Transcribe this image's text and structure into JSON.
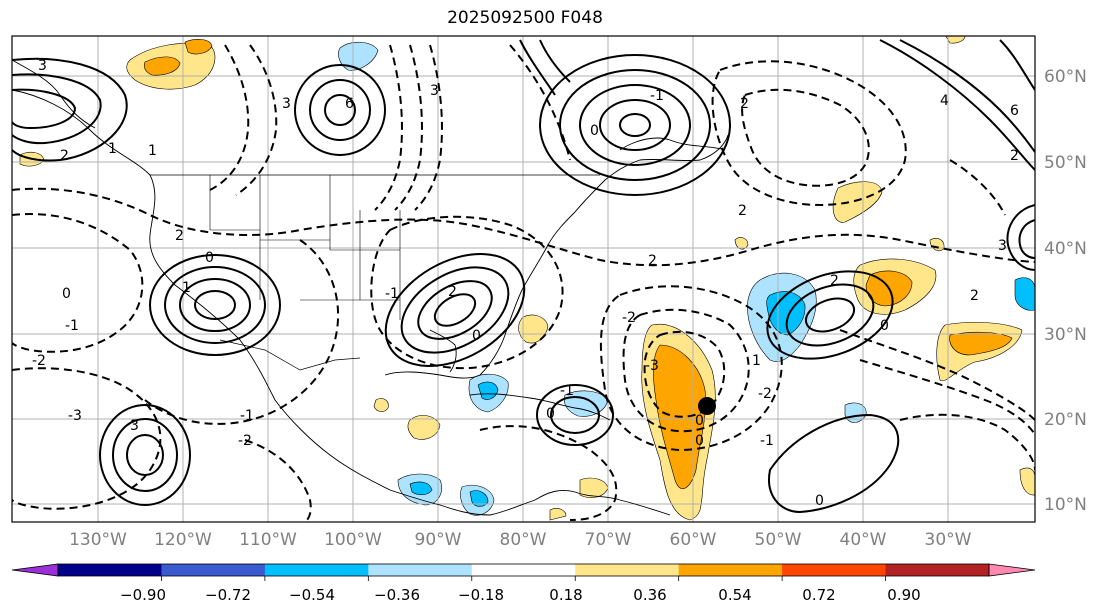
{
  "title": "2025092500 F048",
  "lat_labels": [
    "60°N",
    "50°N",
    "40°N",
    "30°N",
    "20°N",
    "10°N"
  ],
  "lon_labels": [
    "130°W",
    "120°W",
    "110°W",
    "100°W",
    "90°W",
    "80°W",
    "70°W",
    "60°W",
    "50°W",
    "40°W",
    "30°W"
  ],
  "colorbar": {
    "ticks": [
      "−0.90",
      "−0.72",
      "−0.54",
      "−0.36",
      "−0.18",
      "0.18",
      "0.36",
      "0.54",
      "0.72",
      "0.90"
    ],
    "colors": [
      "#9b30d9",
      "#00008b",
      "#3a5bd0",
      "#00bfff",
      "#aee3ff",
      "#ffffff",
      "#ffe68a",
      "#ffa500",
      "#ff4500",
      "#b22222",
      "#ff88b0"
    ]
  },
  "contour_labels": [
    "3",
    "2",
    "1",
    "0",
    "-1",
    "-2",
    "-3",
    "6",
    "3",
    "2",
    "1",
    "0",
    "-1",
    "-2",
    "3",
    "3",
    "2",
    "0",
    "-1",
    "0",
    "-1",
    "-2",
    "-3",
    "2",
    "1",
    "0",
    "-1",
    "0",
    "0",
    "-2",
    "2",
    "4",
    "6",
    "3",
    "2",
    "2",
    "1",
    "0",
    "-1",
    "2",
    "0",
    "2"
  ]
}
